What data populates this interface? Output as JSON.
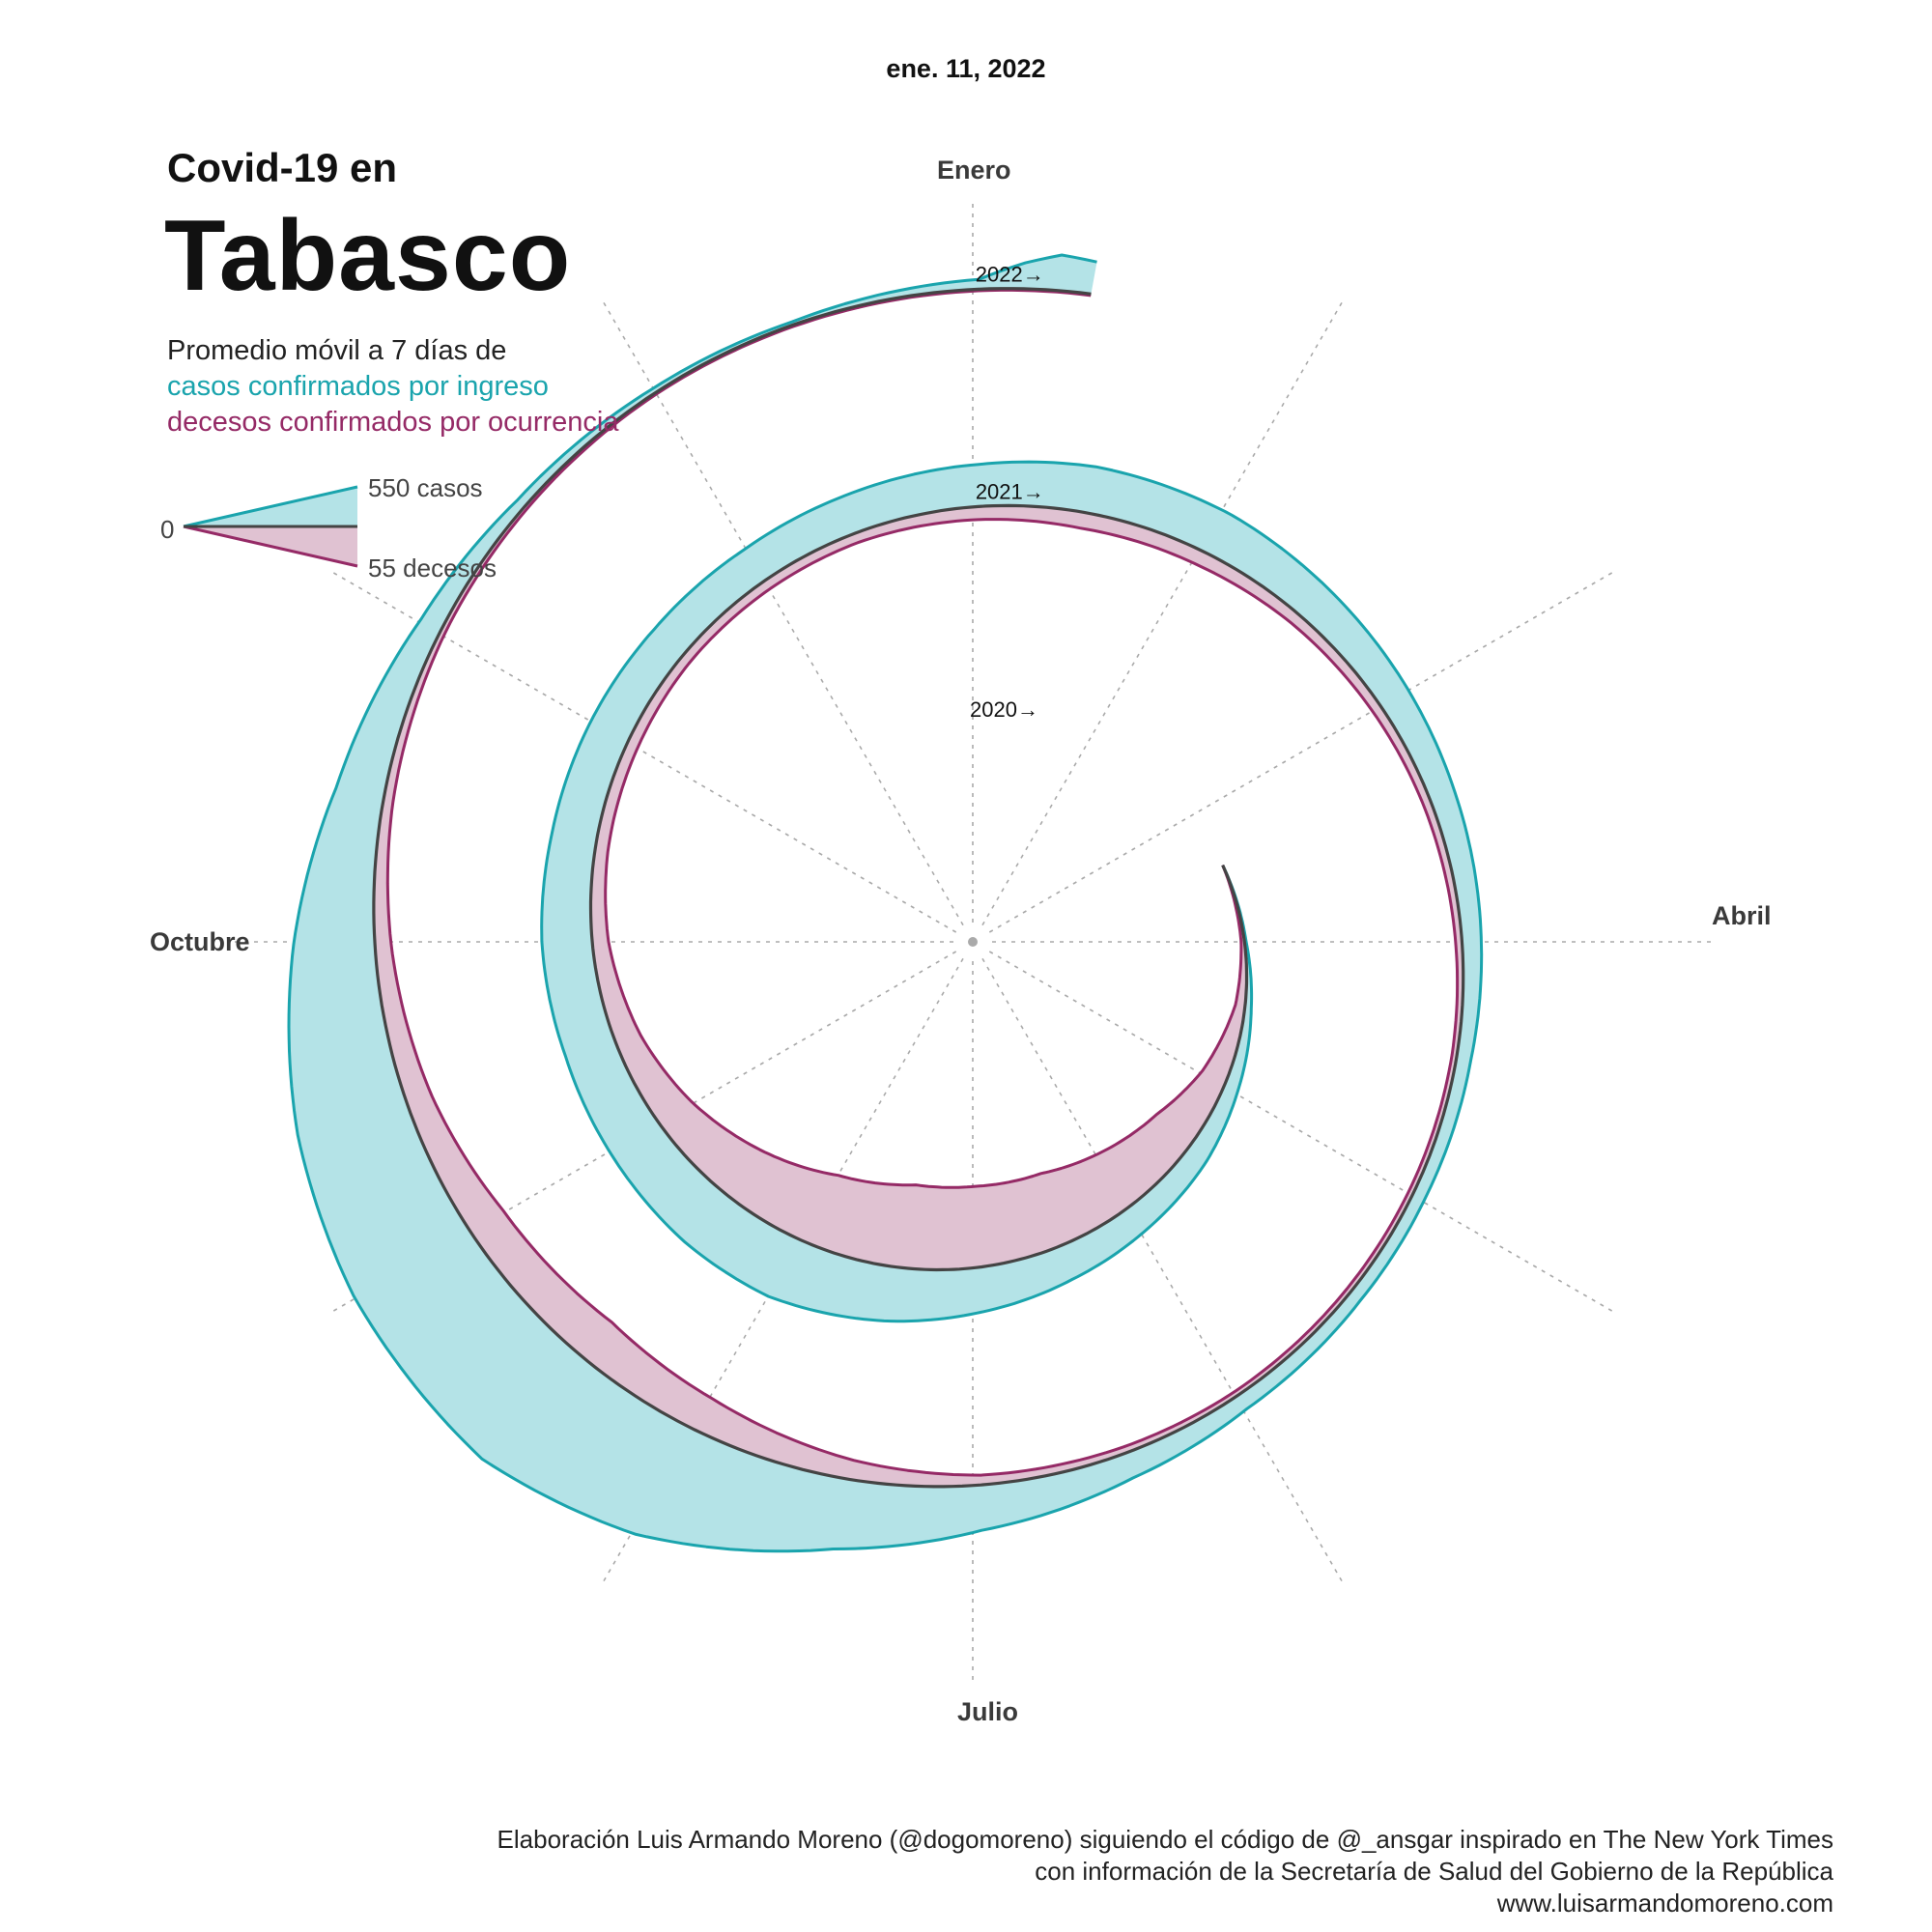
{
  "date_label": "ene. 11, 2022",
  "title": {
    "line1": "Covid-19 en",
    "line2": "Tabasco"
  },
  "subtitle": {
    "line1": "Promedio móvil a 7 días de",
    "line2": "casos confirmados por ingreso",
    "line3": "decesos confirmados por ocurrencia"
  },
  "legend": {
    "zero": "0",
    "cases": "550 casos",
    "deaths": "55 decesos"
  },
  "months": {
    "top": "Enero",
    "right": "Abril",
    "bottom": "Julio",
    "left": "Octubre"
  },
  "colors": {
    "cases_fill": "#b4e3e7",
    "cases_line": "#1aa4ad",
    "deaths_fill": "#e0c2d2",
    "deaths_line": "#952a66",
    "spiral": "#444444",
    "grid": "#aaaaaa"
  },
  "footer": {
    "line1": "Elaboración Luis Armando Moreno (@dogomoreno) siguiendo el código de @_ansgar inspirado en The New York Times",
    "line2": "con información de la Secretaría de Salud del Gobierno de la República",
    "line3": "www.luisarmandomoreno.com"
  },
  "chart_data": {
    "type": "area",
    "layout": "spiral",
    "x_unit": "fecha",
    "scale": {
      "cases": 550,
      "deaths": 55
    },
    "year_labels": [
      "2020→",
      "2021→",
      "2022→"
    ],
    "series": [
      {
        "name": "casos confirmados por ingreso",
        "x": [
          "2020-03-15",
          "2020-04-01",
          "2020-04-15",
          "2020-05-01",
          "2020-05-15",
          "2020-06-01",
          "2020-06-15",
          "2020-07-01",
          "2020-07-15",
          "2020-08-01",
          "2020-08-15",
          "2020-09-01",
          "2020-09-15",
          "2020-10-01",
          "2020-10-15",
          "2020-11-01",
          "2020-11-15",
          "2020-12-01",
          "2020-12-15",
          "2021-01-01",
          "2021-01-15",
          "2021-02-01",
          "2021-02-15",
          "2021-03-01",
          "2021-03-15",
          "2021-04-01",
          "2021-04-15",
          "2021-05-01",
          "2021-05-15",
          "2021-06-01",
          "2021-06-15",
          "2021-07-01",
          "2021-07-15",
          "2021-08-01",
          "2021-08-15",
          "2021-09-01",
          "2021-09-15",
          "2021-10-01",
          "2021-10-15",
          "2021-11-01",
          "2021-11-15",
          "2021-12-01",
          "2021-12-15",
          "2022-01-01",
          "2022-01-05",
          "2022-01-08",
          "2022-01-11"
        ],
        "values": [
          0,
          5,
          20,
          45,
          70,
          90,
          110,
          140,
          170,
          200,
          195,
          175,
          160,
          155,
          140,
          130,
          120,
          115,
          120,
          130,
          145,
          140,
          120,
          100,
          80,
          60,
          45,
          40,
          40,
          50,
          80,
          140,
          220,
          370,
          440,
          410,
          350,
          250,
          150,
          70,
          30,
          15,
          10,
          30,
          80,
          110,
          100
        ]
      },
      {
        "name": "decesos confirmados por ocurrencia",
        "x": [
          "2020-03-15",
          "2020-04-01",
          "2020-04-15",
          "2020-05-01",
          "2020-05-15",
          "2020-06-01",
          "2020-06-15",
          "2020-07-01",
          "2020-07-15",
          "2020-08-01",
          "2020-08-15",
          "2020-09-01",
          "2020-09-15",
          "2020-10-01",
          "2020-10-15",
          "2020-11-01",
          "2020-11-15",
          "2020-12-01",
          "2020-12-15",
          "2021-01-01",
          "2021-01-15",
          "2021-02-01",
          "2021-02-15",
          "2021-03-01",
          "2021-03-15",
          "2021-04-01",
          "2021-04-15",
          "2021-05-01",
          "2021-05-15",
          "2021-06-01",
          "2021-06-15",
          "2021-07-01",
          "2021-07-15",
          "2021-08-01",
          "2021-08-15",
          "2021-09-01",
          "2021-09-15",
          "2021-10-01",
          "2021-10-15",
          "2021-11-01",
          "2021-11-15",
          "2021-12-01",
          "2021-12-15",
          "2022-01-01",
          "2022-01-05",
          "2022-01-08",
          "2022-01-11"
        ],
        "values": [
          0,
          1,
          3,
          8,
          14,
          19,
          23,
          25,
          26,
          23,
          18,
          12,
          8,
          5,
          4,
          3.5,
          3,
          3,
          3,
          4,
          5,
          4.5,
          3.5,
          3,
          2.5,
          2,
          1.5,
          1.5,
          1.5,
          1.5,
          2,
          3,
          6,
          11,
          14,
          12,
          8,
          5,
          3,
          1.5,
          1,
          0.5,
          0.5,
          0.5,
          0.5,
          0.5,
          0.5
        ]
      }
    ]
  }
}
